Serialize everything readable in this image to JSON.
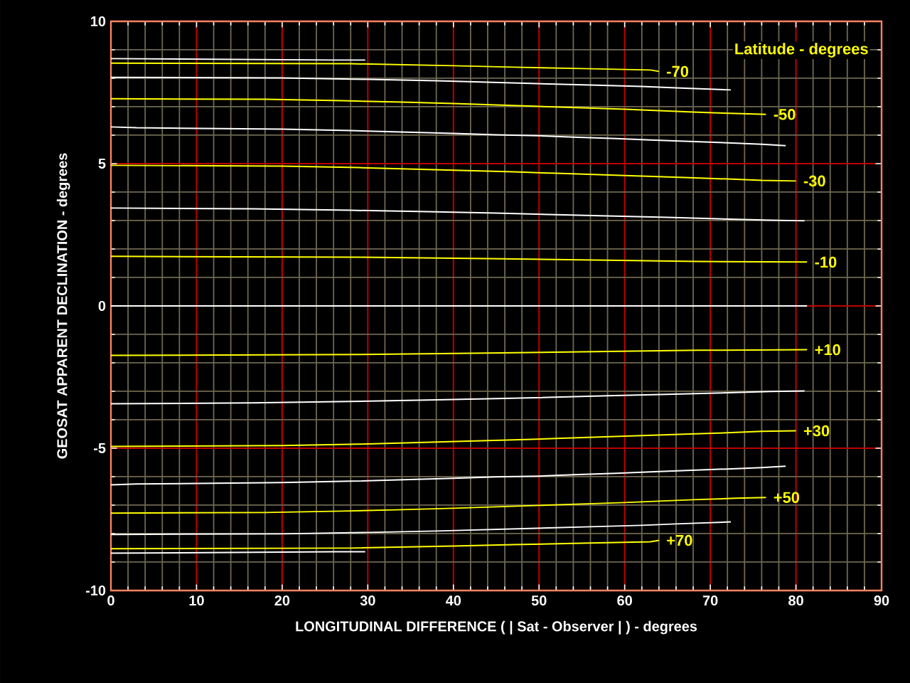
{
  "chart_data": {
    "type": "line",
    "xlabel": "LONGITUDINAL DIFFERENCE ( | Sat - Observer | )  -  degrees",
    "ylabel": "GEOSAT APPARENT DECLINATION  -  degrees",
    "annotations": [
      "Latitude - degrees"
    ],
    "xlim": [
      0,
      90
    ],
    "xticks": [
      0,
      10,
      20,
      30,
      40,
      50,
      60,
      70,
      80,
      90
    ],
    "ylim": [
      -10,
      10
    ],
    "yticks": [
      -10,
      -5,
      0,
      5,
      10
    ],
    "grid": true,
    "series": [
      {
        "color": "#ffffff",
        "x": [
          0,
          26,
          29.7
        ],
        "values": [
          8.69,
          8.64,
          8.64
        ]
      },
      {
        "name": "-70",
        "color": "#ffff00",
        "x": [
          0,
          28,
          40,
          47,
          55,
          63,
          64
        ],
        "values": [
          8.53,
          8.51,
          8.44,
          8.39,
          8.34,
          8.29,
          8.24
        ]
      },
      {
        "color": "#ffffff",
        "x": [
          0,
          20,
          30,
          38,
          44,
          50,
          56,
          62,
          66,
          72.4
        ],
        "values": [
          8.03,
          8.01,
          7.96,
          7.91,
          7.86,
          7.81,
          7.76,
          7.71,
          7.66,
          7.59
        ]
      },
      {
        "name": "-50",
        "color": "#ffff00",
        "x": [
          0,
          18,
          27,
          34,
          40,
          45,
          50,
          55,
          60,
          64,
          68,
          73,
          76.5
        ],
        "values": [
          7.28,
          7.26,
          7.21,
          7.16,
          7.11,
          7.06,
          7.01,
          6.96,
          6.91,
          6.86,
          6.81,
          6.76,
          6.73
        ]
      },
      {
        "color": "#ffffff",
        "x": [
          0,
          3,
          20,
          28,
          34,
          40,
          45,
          50,
          54,
          59,
          63,
          67.5,
          72,
          76,
          78.8
        ],
        "values": [
          6.29,
          6.26,
          6.21,
          6.16,
          6.11,
          6.06,
          6.01,
          5.98,
          5.93,
          5.88,
          5.83,
          5.78,
          5.73,
          5.68,
          5.63
        ]
      },
      {
        "name": "-30",
        "color": "#ffff00",
        "x": [
          0,
          20,
          29,
          35,
          41,
          47,
          52,
          57,
          62,
          67,
          72,
          76,
          80
        ],
        "values": [
          4.94,
          4.91,
          4.86,
          4.81,
          4.76,
          4.71,
          4.66,
          4.61,
          4.56,
          4.51,
          4.46,
          4.41,
          4.39
        ]
      },
      {
        "color": "#ffffff",
        "x": [
          0,
          16.5,
          28,
          37,
          45,
          51.5,
          58,
          65,
          71,
          77,
          81
        ],
        "values": [
          3.44,
          3.41,
          3.36,
          3.31,
          3.26,
          3.21,
          3.16,
          3.11,
          3.06,
          3.01,
          2.99
        ]
      },
      {
        "name": "-10",
        "color": "#ffff00",
        "x": [
          0,
          29,
          44,
          56.5,
          68.6,
          81.3
        ],
        "values": [
          1.74,
          1.71,
          1.66,
          1.61,
          1.56,
          1.54
        ]
      },
      {
        "color": "#ffffff",
        "x": [
          0,
          81.3
        ],
        "values": [
          0,
          0
        ]
      },
      {
        "name": "+10",
        "color": "#ffff00",
        "x": [
          0,
          29,
          44,
          56.5,
          68.6,
          81.3
        ],
        "values": [
          -1.74,
          -1.71,
          -1.66,
          -1.61,
          -1.56,
          -1.54
        ]
      },
      {
        "color": "#ffffff",
        "x": [
          0,
          16.5,
          28,
          37,
          45,
          51.5,
          58,
          65,
          71,
          77,
          81
        ],
        "values": [
          -3.44,
          -3.41,
          -3.36,
          -3.31,
          -3.26,
          -3.21,
          -3.16,
          -3.11,
          -3.06,
          -3.01,
          -2.99
        ]
      },
      {
        "name": "+30",
        "color": "#ffff00",
        "x": [
          0,
          20,
          29,
          35,
          41,
          47,
          52,
          57,
          62,
          67,
          72,
          76,
          80
        ],
        "values": [
          -4.94,
          -4.91,
          -4.86,
          -4.81,
          -4.76,
          -4.71,
          -4.66,
          -4.61,
          -4.56,
          -4.51,
          -4.46,
          -4.41,
          -4.39
        ]
      },
      {
        "color": "#ffffff",
        "x": [
          0,
          3,
          20,
          28,
          34,
          40,
          45,
          50,
          54,
          59,
          63,
          67.5,
          72,
          76,
          78.8
        ],
        "values": [
          -6.29,
          -6.26,
          -6.21,
          -6.16,
          -6.11,
          -6.06,
          -6.01,
          -5.98,
          -5.93,
          -5.88,
          -5.83,
          -5.78,
          -5.73,
          -5.68,
          -5.63
        ]
      },
      {
        "name": "+50",
        "color": "#ffff00",
        "x": [
          0,
          18,
          27,
          34,
          40,
          45,
          50,
          55,
          60,
          64,
          68,
          73,
          76.5
        ],
        "values": [
          -7.28,
          -7.26,
          -7.21,
          -7.16,
          -7.11,
          -7.06,
          -7.01,
          -6.96,
          -6.91,
          -6.86,
          -6.81,
          -6.76,
          -6.73
        ]
      },
      {
        "color": "#ffffff",
        "x": [
          0,
          20,
          30,
          38,
          44,
          50,
          56,
          62,
          66,
          72.4
        ],
        "values": [
          -8.03,
          -8.01,
          -7.96,
          -7.91,
          -7.86,
          -7.81,
          -7.76,
          -7.71,
          -7.66,
          -7.59
        ]
      },
      {
        "name": "+70",
        "color": "#ffff00",
        "x": [
          0,
          28,
          40,
          47,
          55,
          63,
          64
        ],
        "values": [
          -8.53,
          -8.51,
          -8.44,
          -8.39,
          -8.34,
          -8.29,
          -8.24
        ]
      },
      {
        "color": "#ffffff",
        "x": [
          0,
          26,
          29.7
        ],
        "values": [
          -8.69,
          -8.64,
          -8.64
        ]
      }
    ]
  }
}
